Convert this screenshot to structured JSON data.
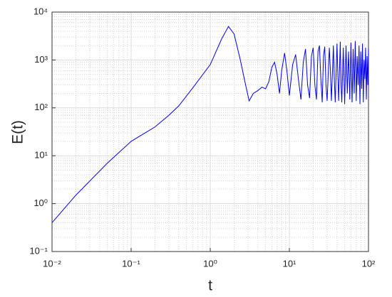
{
  "chart_data": {
    "type": "line",
    "x_label": "t",
    "y_label": "E(t)",
    "xscale": "log",
    "yscale": "log",
    "grid": true,
    "minor_grid": true,
    "xlim": [
      0.01,
      100
    ],
    "ylim": [
      0.1,
      10000
    ],
    "xticks": [
      {
        "value": 0.01,
        "label": "10⁻²"
      },
      {
        "value": 0.1,
        "label": "10⁻¹"
      },
      {
        "value": 1,
        "label": "10⁰"
      },
      {
        "value": 10,
        "label": "10¹"
      },
      {
        "value": 100,
        "label": "10²"
      }
    ],
    "yticks": [
      {
        "value": 0.1,
        "label": "10⁻¹"
      },
      {
        "value": 1,
        "label": "10⁰"
      },
      {
        "value": 10,
        "label": "10¹"
      },
      {
        "value": 100,
        "label": "10²"
      },
      {
        "value": 1000,
        "label": "10³"
      },
      {
        "value": 10000,
        "label": "10⁴"
      }
    ],
    "series": [
      {
        "name": "E(t)",
        "color": "#0000ee",
        "x": [
          0.01,
          0.02,
          0.05,
          0.1,
          0.15,
          0.2,
          0.3,
          0.4,
          0.6,
          1,
          1.4,
          1.7,
          2,
          2.4,
          2.8,
          3.1,
          3.5,
          4,
          4.5,
          5,
          5.5,
          6,
          6.5,
          7,
          7.5,
          8,
          8.7,
          9.3,
          10,
          11,
          12,
          13,
          14,
          15,
          16,
          17,
          18,
          19,
          20,
          21,
          22,
          23,
          24,
          25,
          26,
          27,
          28,
          29,
          30,
          32,
          33,
          34,
          36,
          37,
          38,
          40,
          41,
          42,
          44,
          45,
          46,
          48,
          50,
          52,
          54,
          56,
          58,
          60,
          62,
          64,
          66,
          68,
          70,
          72,
          74,
          76,
          78,
          80,
          82,
          84,
          86,
          88,
          90,
          92,
          94,
          96,
          98,
          100
        ],
        "values": [
          0.4,
          1.5,
          7,
          20,
          30,
          40,
          70,
          110,
          260,
          800,
          2800,
          5000,
          3500,
          1000,
          300,
          140,
          200,
          230,
          270,
          250,
          350,
          700,
          900,
          500,
          200,
          600,
          1400,
          600,
          180,
          800,
          1300,
          400,
          150,
          900,
          1700,
          300,
          160,
          1200,
          1800,
          300,
          150,
          1500,
          2000,
          400,
          130,
          1200,
          1900,
          300,
          140,
          1800,
          600,
          140,
          2000,
          400,
          130,
          2200,
          500,
          140,
          2400,
          300,
          130,
          1800,
          120,
          2000,
          200,
          1500,
          150,
          2300,
          130,
          1700,
          200,
          2500,
          140,
          1200,
          300,
          2000,
          120,
          1500,
          250,
          2200,
          130,
          1000,
          400,
          1800,
          150,
          1200,
          300,
          1800
        ]
      }
    ]
  }
}
